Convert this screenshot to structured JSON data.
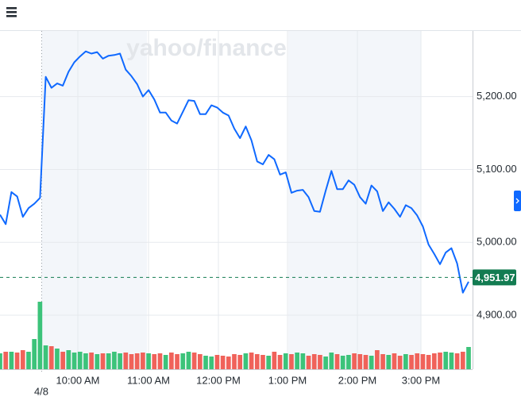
{
  "chart_data": {
    "type": "line",
    "watermark": "yahoo/finance",
    "date_label": "4/8",
    "x_tick_labels": [
      "10:00 AM",
      "11:00 AM",
      "12:00 PM",
      "1:00 PM",
      "2:00 PM",
      "3:00 PM"
    ],
    "color": "#0f69ff",
    "values": [
      5038,
      5025,
      5069,
      5063,
      5035,
      5047,
      5053,
      5061,
      5227,
      5212,
      5218,
      5215,
      5234,
      5247,
      5255,
      5262,
      5259,
      5261,
      5252,
      5256,
      5257,
      5259,
      5237,
      5228,
      5217,
      5200,
      5209,
      5196,
      5178,
      5178,
      5167,
      5163,
      5179,
      5195,
      5194,
      5176,
      5176,
      5188,
      5185,
      5178,
      5174,
      5156,
      5143,
      5159,
      5140,
      5111,
      5107,
      5120,
      5114,
      5093,
      5096,
      5068,
      5071,
      5072,
      5062,
      5043,
      5042,
      5071,
      5098,
      5073,
      5073,
      5085,
      5079,
      5062,
      5053,
      5078,
      5070,
      5043,
      5055,
      5046,
      5035,
      5051,
      5047,
      5037,
      5022,
      4997,
      4984,
      4970,
      4986,
      4992,
      4971,
      4931,
      4946
    ],
    "ylim": [
      4826,
      5290
    ],
    "yticks": [
      {
        "value": 4900,
        "label": "4,900.00"
      },
      {
        "value": 5000,
        "label": "5,000.00"
      },
      {
        "value": 5100,
        "label": "5,100.00"
      },
      {
        "value": 5200,
        "label": "5,200.00"
      }
    ],
    "current_price": {
      "value": 4951.97,
      "label": "4,951.97"
    },
    "volume": {
      "up_color": "#3cc37a",
      "down_color": "#f0625a",
      "values": [
        20,
        22,
        22,
        21,
        24,
        22,
        38,
        85,
        30,
        29,
        26,
        22,
        24,
        21,
        22,
        20,
        21,
        19,
        20,
        20,
        22,
        20,
        21,
        19,
        20,
        21,
        20,
        19,
        20,
        18,
        21,
        19,
        20,
        22,
        21,
        19,
        17,
        16,
        18,
        17,
        16,
        19,
        18,
        20,
        21,
        19,
        18,
        17,
        22,
        18,
        20,
        19,
        21,
        20,
        17,
        19,
        18,
        16,
        21,
        19,
        17,
        18,
        20,
        19,
        18,
        17,
        24,
        19,
        18,
        20,
        17,
        19,
        18,
        20,
        19,
        18,
        20,
        21,
        22,
        21,
        20,
        22,
        28
      ]
    }
  }
}
